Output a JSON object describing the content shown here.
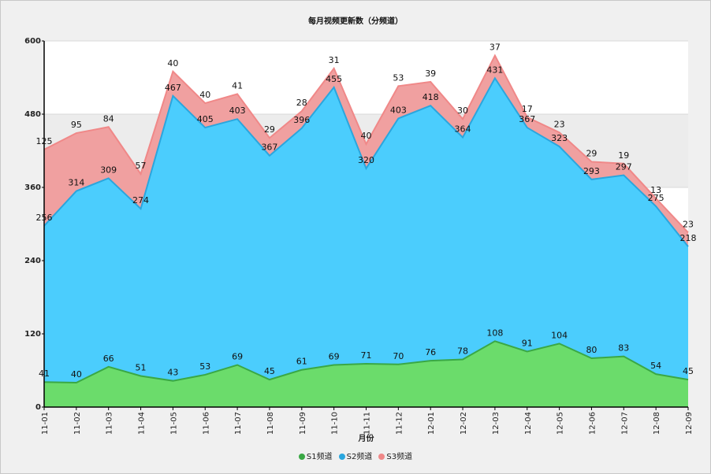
{
  "chart_data": {
    "type": "area",
    "stacked": true,
    "title": "每月视频更新数（分频道）",
    "xlabel": "月份",
    "ylabel": "",
    "ylim": [
      0,
      600
    ],
    "yticks": [
      0,
      120,
      240,
      360,
      480,
      600
    ],
    "categories": [
      "11-01",
      "11-02",
      "11-03",
      "11-04",
      "11-05",
      "11-06",
      "11-07",
      "11-08",
      "11-09",
      "11-10",
      "11-11",
      "11-12",
      "12-01",
      "12-02",
      "12-03",
      "12-04",
      "12-05",
      "12-06",
      "12-07",
      "12-08",
      "12-09"
    ],
    "series": [
      {
        "name": "S1频道",
        "color": "#6bdc6b",
        "line": "#3aa845",
        "values": [
          41,
          40,
          66,
          51,
          43,
          53,
          69,
          45,
          61,
          69,
          71,
          70,
          76,
          78,
          108,
          91,
          104,
          80,
          83,
          54,
          45
        ]
      },
      {
        "name": "S2频道",
        "color": "#4bcdfd",
        "line": "#2aa6de",
        "values": [
          256,
          314,
          309,
          274,
          467,
          405,
          403,
          367,
          396,
          455,
          320,
          403,
          418,
          364,
          431,
          367,
          323,
          293,
          297,
          275,
          218
        ]
      },
      {
        "name": "S3频道",
        "color": "#f0a0a0",
        "line": "#f08888",
        "values": [
          125,
          95,
          84,
          57,
          40,
          40,
          41,
          29,
          28,
          31,
          40,
          53,
          39,
          30,
          37,
          17,
          23,
          29,
          19,
          13,
          23
        ]
      }
    ],
    "grid": true,
    "legend_position": "bottom"
  }
}
